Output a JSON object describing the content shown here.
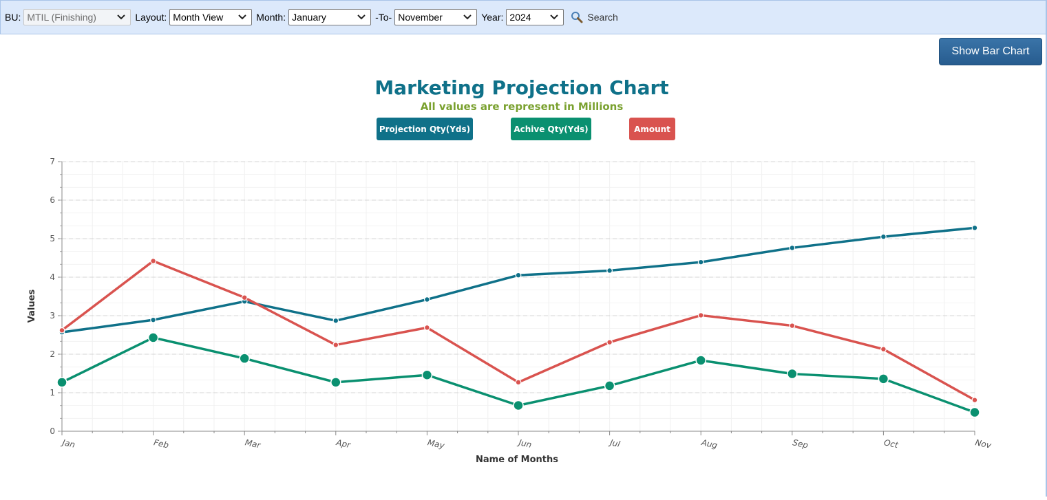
{
  "toolbar": {
    "bu_label": "BU:",
    "bu_value": "MTIL (Finishing)",
    "layout_label": "Layout:",
    "layout_value": "Month View",
    "month_label": "Month:",
    "month_value": "January",
    "to_label": "-To-",
    "to_value": "November",
    "year_label": "Year:",
    "year_value": "2024",
    "search_label": "Search"
  },
  "show_bar_chart_label": "Show Bar Chart",
  "colors": {
    "projection": "#0f7189",
    "achieve": "#0a9070",
    "amount": "#d9534f",
    "title": "#0f7189",
    "subtitle": "#7aa12f"
  },
  "chart_data": {
    "type": "line",
    "title": "Marketing Projection Chart",
    "subtitle": "All values are represent in Millions",
    "xlabel": "Name of Months",
    "ylabel": "Values",
    "ylim": [
      0,
      7
    ],
    "yticks": [
      0,
      1,
      2,
      3,
      4,
      5,
      6,
      7
    ],
    "grid": true,
    "legend_position": "top-center",
    "categories": [
      "Jan",
      "Feb",
      "Mar",
      "Apr",
      "May",
      "Jun",
      "Jul",
      "Aug",
      "Sep",
      "Oct",
      "Nov"
    ],
    "series": [
      {
        "name": "Projection Qty(Yds)",
        "values": [
          2.57,
          2.89,
          3.37,
          2.87,
          3.42,
          4.05,
          4.17,
          4.39,
          4.76,
          5.05,
          5.28
        ]
      },
      {
        "name": "Achive Qty(Yds)",
        "values": [
          1.27,
          2.43,
          1.89,
          1.27,
          1.46,
          0.67,
          1.18,
          1.84,
          1.49,
          1.36,
          0.49
        ]
      },
      {
        "name": "Amount",
        "values": [
          2.62,
          4.42,
          3.47,
          2.24,
          2.69,
          1.27,
          2.31,
          3.01,
          2.74,
          2.13,
          0.81
        ]
      }
    ]
  }
}
